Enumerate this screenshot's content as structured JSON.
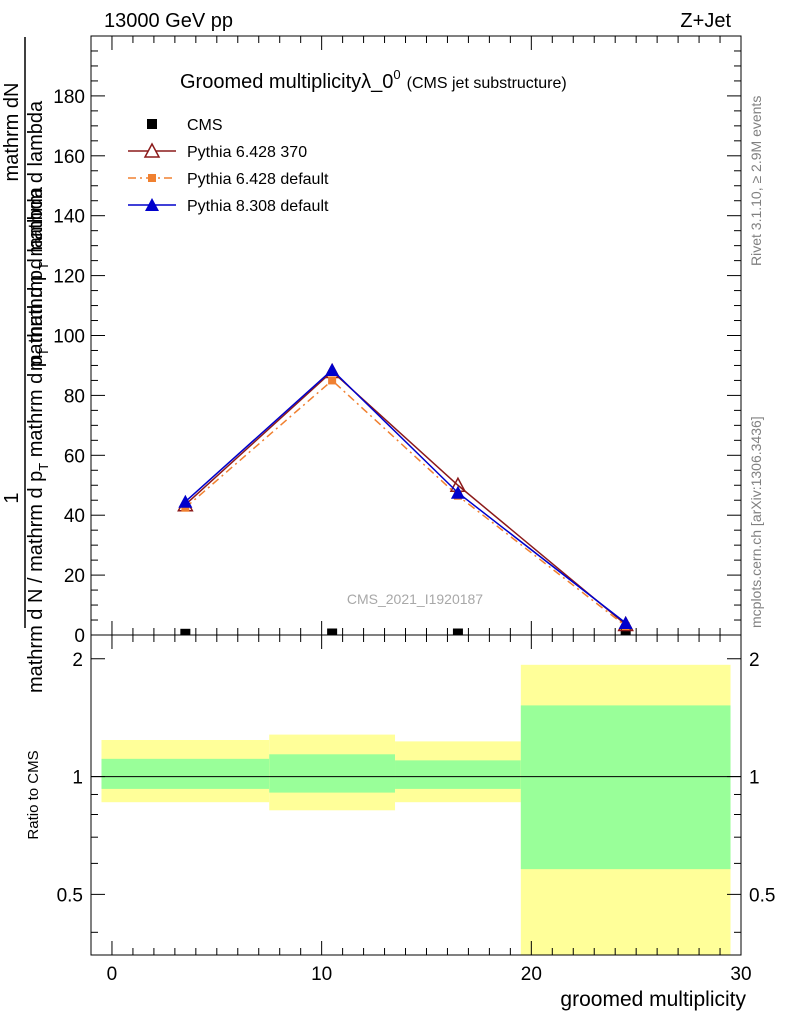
{
  "header": {
    "left": "13000 GeV pp",
    "right": "Z+Jet"
  },
  "side_labels": {
    "rivet": "Rivet 3.1.10, ≥ 2.9M events",
    "mcplots": "mcplots.cern.ch [arXiv:1306.3436]"
  },
  "chart_data": {
    "type": "line",
    "title_main": "Groomed multiplicityλ_0",
    "title_sup": "0",
    "title_sub": "(CMS jet substructure)",
    "watermark": "CMS_2021_I1920187",
    "xlabel": "groomed multiplicity",
    "ylabel_num": "mathrm dN",
    "ylabel_den": "mathrm d N / mathrm d p_T mathrm d lambda",
    "ylabel_one": "1",
    "ylabel_top_parts": [
      "mathrm d p",
      "T",
      " mathrm d lambda"
    ],
    "ylabel_bottom_parts": [
      "mathrm d N / mathrm d p",
      "T",
      " mathrm d p",
      "T",
      " mathrm d lambda"
    ],
    "ratio_ylabel": "Ratio to CMS",
    "xlim": [
      -1,
      30
    ],
    "ylim": [
      0,
      200
    ],
    "ratio_ylim": [
      0.35,
      2.3
    ],
    "x_ticks": [
      0,
      10,
      20,
      30
    ],
    "y_ticks": [
      20,
      40,
      60,
      80,
      100,
      120,
      140,
      160,
      180
    ],
    "ratio_ticks": [
      0.5,
      1,
      2
    ],
    "legend_position": "top-left",
    "x": [
      3.5,
      10.5,
      16.5,
      24.5
    ],
    "bin_edges": [
      -0.5,
      7.5,
      13.5,
      19.5,
      29.5
    ],
    "series": [
      {
        "name": "CMS",
        "values": [
          0.4,
          0.5,
          0.5,
          0.5
        ],
        "color": "#000000",
        "marker": "square",
        "line": "none"
      },
      {
        "name": "Pythia 6.428 370",
        "values": [
          43.5,
          88.0,
          50.0,
          3.5
        ],
        "color": "#8b1a1a",
        "marker": "triangle-open",
        "line": "solid"
      },
      {
        "name": "Pythia 6.428 default",
        "values": [
          42.5,
          85.0,
          46.5,
          3.0
        ],
        "color": "#f08030",
        "marker": "square-small",
        "line": "dashdot"
      },
      {
        "name": "Pythia 8.308 default",
        "values": [
          44.5,
          88.5,
          47.5,
          4.0
        ],
        "color": "#0000cc",
        "marker": "triangle",
        "line": "solid"
      }
    ],
    "ratio_bands": {
      "inner": [
        [
          0.93,
          1.11
        ],
        [
          0.91,
          1.14
        ],
        [
          0.93,
          1.1
        ],
        [
          0.58,
          1.52
        ]
      ],
      "outer": [
        [
          0.86,
          1.24
        ],
        [
          0.82,
          1.28
        ],
        [
          0.86,
          1.23
        ],
        [
          0.35,
          1.93
        ]
      ],
      "inner_color": "#99ff99",
      "outer_color": "#ffff99"
    }
  }
}
